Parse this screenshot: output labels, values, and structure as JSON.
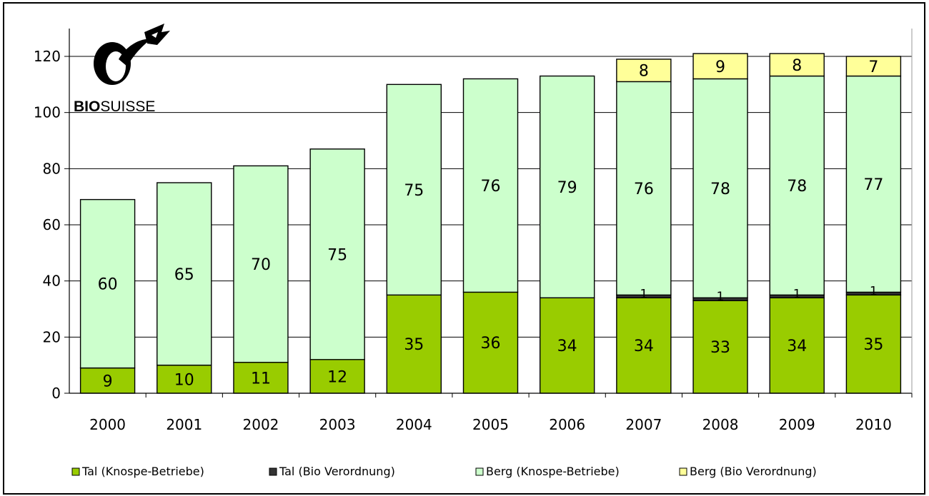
{
  "logo": {
    "bold": "BIO",
    "regular": "SUISSE"
  },
  "chart_data": {
    "type": "bar",
    "stacked": true,
    "categories": [
      "2000",
      "2001",
      "2002",
      "2003",
      "2004",
      "2005",
      "2006",
      "2007",
      "2008",
      "2009",
      "2010"
    ],
    "series": [
      {
        "name": "Tal (Knospe-Betriebe)",
        "color": "#99cc00",
        "values": [
          9,
          10,
          11,
          12,
          35,
          36,
          34,
          34,
          33,
          34,
          35
        ],
        "labels": [
          "9",
          "10",
          "11",
          "12",
          "35",
          "36",
          "34",
          "34",
          "33",
          "34",
          "35"
        ]
      },
      {
        "name": "Tal (Bio Verordnung)",
        "color": "#333333",
        "values": [
          0,
          0,
          0,
          0,
          0,
          0,
          0,
          1,
          1,
          1,
          1
        ],
        "labels": [
          "",
          "",
          "",
          "",
          "",
          "",
          "",
          "1",
          "1",
          "1",
          "1"
        ]
      },
      {
        "name": "Berg (Knospe-Betriebe)",
        "color": "#ccffcc",
        "values": [
          60,
          65,
          70,
          75,
          75,
          76,
          79,
          76,
          78,
          78,
          77
        ],
        "labels": [
          "60",
          "65",
          "70",
          "75",
          "75",
          "76",
          "79",
          "76",
          "78",
          "78",
          "77"
        ]
      },
      {
        "name": "Berg (Bio Verordnung)",
        "color": "#ffff99",
        "values": [
          0,
          0,
          0,
          0,
          0,
          0,
          0,
          8,
          9,
          8,
          7
        ],
        "labels": [
          "",
          "",
          "",
          "",
          "",
          "",
          "",
          "8",
          "9",
          "8",
          "7"
        ]
      }
    ],
    "ylim": [
      0,
      120
    ],
    "yticks": [
      "0",
      "20",
      "40",
      "60",
      "80",
      "100",
      "120"
    ],
    "grid": true,
    "legend_position": "bottom"
  }
}
